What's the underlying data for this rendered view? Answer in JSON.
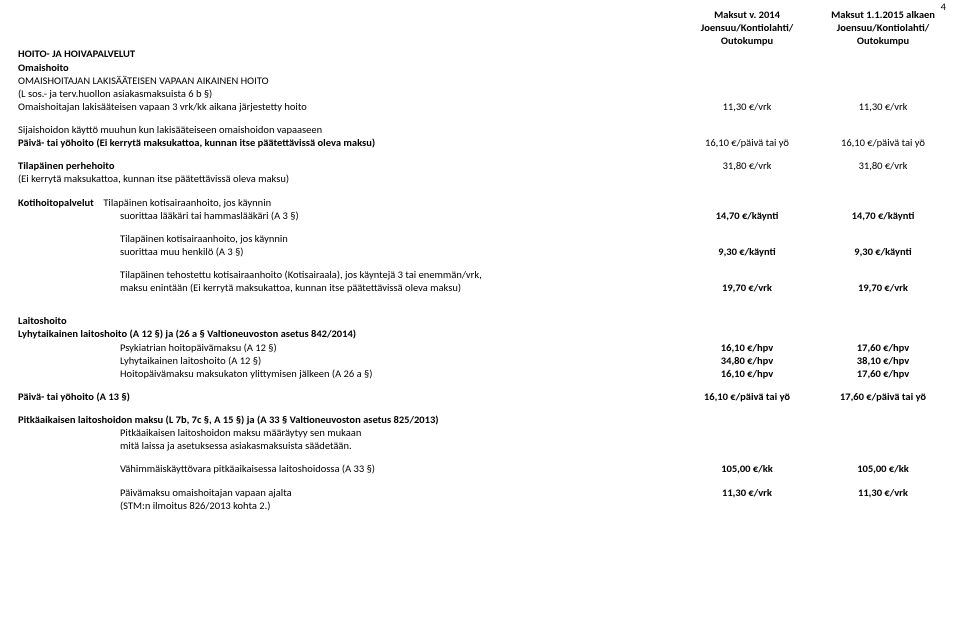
{
  "pageNumber": "4",
  "header": {
    "col1_line1": "Maksut v. 2014",
    "col1_line2": "Joensuu/Kontiolahti/",
    "col1_line3": "Outokumpu",
    "col2_line1": "Maksut 1.1.2015 alkaen",
    "col2_line2": "Joensuu/Kontiolahti/",
    "col2_line3": "Outokumpu"
  },
  "s1": {
    "title": "HOITO- JA HOIVAPALVELUT",
    "sub": "Omaishoito",
    "line3": "OMAISHOITAJAN LAKISÄÄTEISEN VAPAAN AIKAINEN HOITO",
    "line4": "(L sos.- ja terv.huollon asiakasmaksuista 6 b §)",
    "row1_label": "Omaishoitajan lakisääteisen vapaan 3 vrk/kk aikana järjestetty hoito",
    "row1_v1": "11,30 €/vrk",
    "row1_v2": "11,30 €/vrk",
    "row2_label": "Sijaishoidon käyttö muuhun kun lakisääteiseen omaishoidon vapaaseen",
    "row3_label": "Päivä- tai yöhoito (Ei kerrytä maksukattoa, kunnan itse päätettävissä oleva maksu)",
    "row3_v1": "16,10 €/päivä tai yö",
    "row3_v2": "16,10 €/päivä tai yö",
    "row4_label": "Tilapäinen perhehoito",
    "row4_v1": "31,80 €/vrk",
    "row4_v2": "31,80 €/vrk",
    "row5_label": "(Ei kerrytä maksukattoa, kunnan itse päätettävissä oleva maksu)"
  },
  "s2": {
    "prefix": "Kotihoitopalvelut",
    "r1l1": "Tilapäinen kotisairaanhoito, jos käynnin",
    "r1l2": "suorittaa lääkäri tai hammaslääkäri (A 3 §)",
    "r1_v1": "14,70 €/käynti",
    "r1_v2": "14,70 €/käynti",
    "r2l1": "Tilapäinen kotisairaanhoito, jos käynnin",
    "r2l2": "suorittaa muu henkilö (A 3 §)",
    "r2_v1": "9,30 €/käynti",
    "r2_v2": "9,30 €/käynti",
    "r3l1": "Tilapäinen tehostettu kotisairaanhoito (Kotisairaala), jos käyntejä 3 tai enemmän/vrk,",
    "r3l2": "maksu enintään (Ei kerrytä maksukattoa, kunnan itse päätettävissä oleva maksu)",
    "r3_v1": "19,70 €/vrk",
    "r3_v2": "19,70 €/vrk"
  },
  "s3": {
    "title": "Laitoshoito",
    "line2": "Lyhytaikainen laitoshoito (A 12 §) ja (26 a § Valtioneuvoston asetus 842/2014)",
    "r1_label": "Psykiatrian hoitopäivämaksu (A 12 §)",
    "r1_v1": "16,10 €/hpv",
    "r1_v2": "17,60 €/hpv",
    "r2_label": "Lyhytaikainen laitoshoito (A 12 §)",
    "r2_v1": "34,80 €/hpv",
    "r2_v2": "38,10 €/hpv",
    "r3_label": "Hoitopäivämaksu maksukaton ylittymisen jälkeen (A 26 a §)",
    "r3_v1": "16,10 €/hpv",
    "r3_v2": "17,60 €/hpv",
    "r4_label": "Päivä- tai yöhoito (A 13 §)",
    "r4_v1": "16,10 €/päivä tai yö",
    "r4_v2": "17,60 €/päivä tai yö",
    "line_pitka": "Pitkäaikaisen laitoshoidon maksu (L 7b, 7c §, A 15 §) ja (A 33 § Valtioneuvoston asetus 825/2013)",
    "r5_label": "Pitkäaikaisen laitoshoidon maksu määräytyy sen mukaan",
    "r6_label": "mitä laissa ja asetuksessa asiakasmaksuista säädetään.",
    "r7_label": "Vähimmäiskäyttövara pitkäaikaisessa laitoshoidossa (A 33 §)",
    "r7_v1": "105,00 €/kk",
    "r7_v2": "105,00 €/kk",
    "r8_label": "Päivämaksu omaishoitajan vapaan ajalta",
    "r8_v1": "11,30 €/vrk",
    "r8_v2": "11,30 €/vrk",
    "r9_label": "(STM:n ilmoitus 826/2013 kohta 2.)"
  }
}
